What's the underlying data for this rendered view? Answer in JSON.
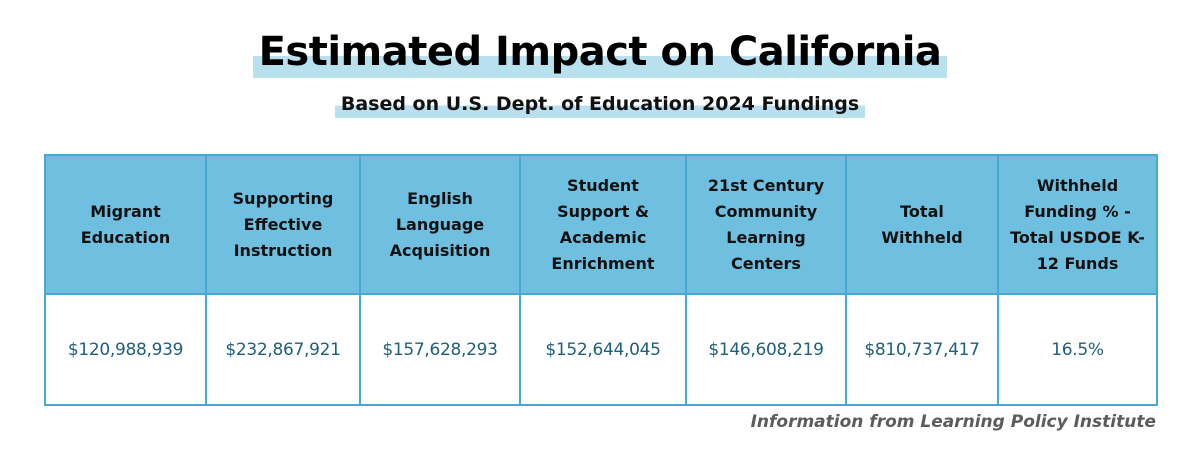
{
  "title": "Estimated Impact on California",
  "subtitle": "Based on U.S. Dept. of Education 2024 Fundings",
  "chart_data": {
    "type": "table",
    "columns": [
      "Migrant Education",
      "Supporting Effective Instruction",
      "English Language Acquisition",
      "Student Support & Academic Enrichment",
      "21st Century Community Learning Centers",
      "Total Withheld",
      "Withheld Funding % - Total USDOE K-12 Funds"
    ],
    "rows": [
      [
        "$120,988,939",
        "$232,867,921",
        "$157,628,293",
        "$152,644,045",
        "$146,608,219",
        "$810,737,417",
        "16.5%"
      ]
    ],
    "values": [
      120988939,
      232867921,
      157628293,
      152644045,
      146608219,
      810737417,
      16.5
    ]
  },
  "source": "Information from Learning Policy Institute",
  "colors": {
    "header_fill": "#6fc0e0",
    "border": "#4aa8cf",
    "highlight": "#b9e0ef",
    "value_text": "#1f5f7a",
    "source_text": "#5c5c5c"
  }
}
